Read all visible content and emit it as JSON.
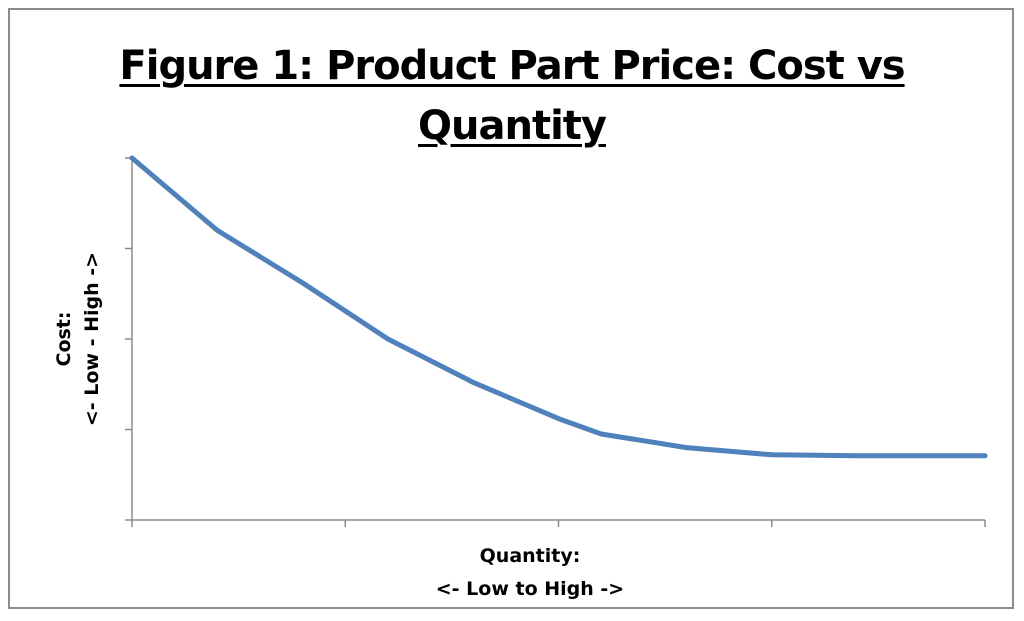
{
  "chart_data": {
    "type": "line",
    "title_lines": [
      "Figure 1: Product Part Price: Cost vs",
      "Quantity"
    ],
    "ylabel_lines": [
      "Cost:",
      "<- Low - High ->"
    ],
    "xlabel_lines": [
      "Quantity:",
      "<- Low to High ->"
    ],
    "x_ticks": 4,
    "y_ticks": 4,
    "xlim": [
      0,
      4
    ],
    "ylim": [
      0,
      4
    ],
    "grid": false,
    "legend": "none",
    "line_color": "#4f81bd",
    "series": [
      {
        "x": [
          0,
          0.4,
          0.8,
          1.2,
          1.6,
          2.0,
          2.2,
          2.6,
          3.0,
          3.4,
          4.0
        ],
        "y": [
          4.0,
          3.2,
          2.62,
          2.0,
          1.52,
          1.12,
          0.95,
          0.8,
          0.72,
          0.71,
          0.71
        ]
      }
    ]
  }
}
